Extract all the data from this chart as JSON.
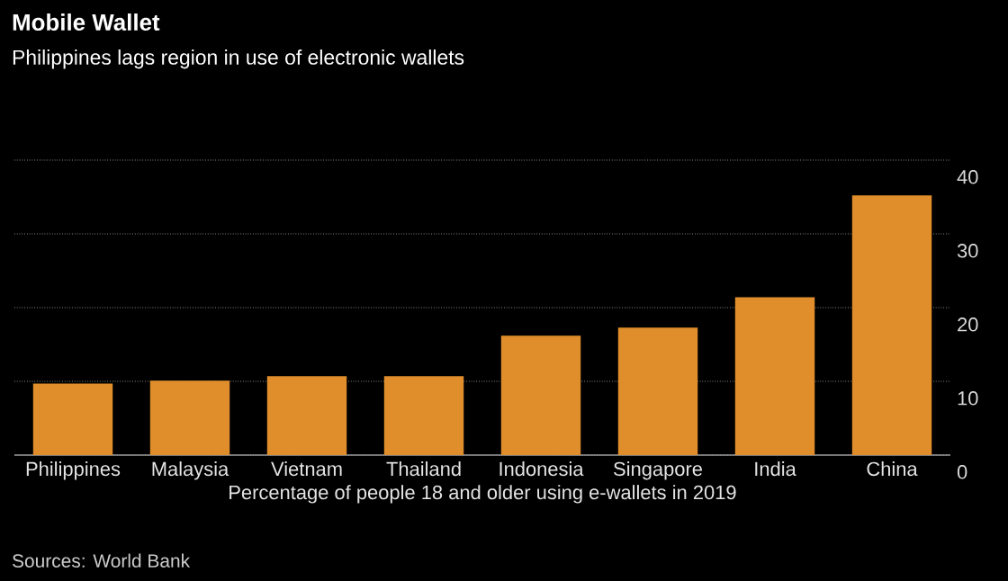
{
  "chart_data": {
    "type": "bar",
    "title": "Mobile Wallet",
    "subtitle": "Philippines lags region in use of electronic wallets",
    "categories": [
      "Philippines",
      "Malaysia",
      "Vietnam",
      "Thailand",
      "Indonesia",
      "Singapore",
      "India",
      "China"
    ],
    "values": [
      9.7,
      10.1,
      10.7,
      10.7,
      16.2,
      17.3,
      21.4,
      35.2
    ],
    "color": "#e08e2b",
    "xlabel": "Percentage of people 18 and older using e-wallets in 2019",
    "ylim": [
      0,
      40
    ],
    "yticks": [
      0,
      10,
      20,
      30,
      40
    ],
    "grid": "y",
    "annotations": [
      "Sources: World Bank"
    ]
  }
}
